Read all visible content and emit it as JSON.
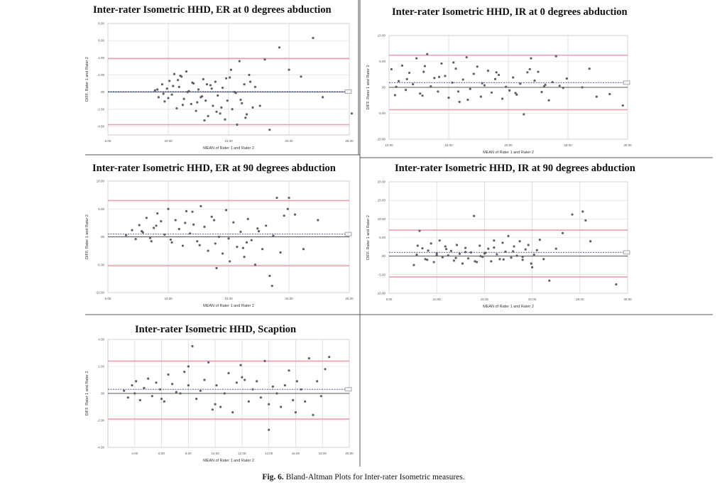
{
  "caption": {
    "label": "Fig. 6.",
    "text": "Bland-Altman Plots for Inter-rater Isometric measures."
  },
  "colors": {
    "limits": "#e8a0ae",
    "mean": "#4b5f95",
    "zero": "#555555",
    "points": "#606060",
    "grid": "#d9d9d9",
    "divider": "#555555"
  },
  "chart_data": [
    {
      "type": "scatter",
      "title": "Inter-rater Isometric HHD, ER at 0 degrees abduction",
      "xlabel": "MEAN of Rater 1 and Rater 2",
      "ylabel": "DIFF. Rater 1 and Rater 2",
      "xlim": [
        5,
        25
      ],
      "ylim": [
        -5,
        8
      ],
      "xticks": [
        5,
        10,
        15,
        20,
        25
      ],
      "xtick_labels": [
        "5.00",
        "10.00",
        "15.00",
        "20.00",
        "25.00"
      ],
      "yticks": [
        -4,
        -2,
        0,
        2,
        4,
        6,
        8
      ],
      "ytick_labels": [
        "-4.00",
        "-2.00",
        ".00",
        "2.00",
        "4.00",
        "6.00",
        "8.00"
      ],
      "grid": true,
      "lines": {
        "upper_limit": 3.9,
        "mean": 0.05,
        "zero": 0,
        "lower_limit": -3.8
      },
      "x": [
        8.9,
        9.2,
        9.5,
        9.7,
        9.9,
        10.1,
        10.3,
        10.5,
        10.7,
        10.9,
        11.1,
        11.3,
        11.5,
        11.7,
        11.9,
        12.1,
        12.3,
        12.5,
        12.7,
        12.9,
        13.1,
        13.3,
        13.5,
        13.7,
        13.9,
        14.1,
        14.3,
        14.5,
        14.7,
        14.9,
        15.1,
        15.3,
        15.5,
        15.7,
        15.9,
        16.1,
        16.3,
        16.5,
        16.7,
        9.6,
        10.4,
        11.2,
        12.0,
        12.8,
        13.6,
        14.4,
        15.2,
        16.0,
        9.1,
        10.0,
        10.8,
        11.6,
        12.4,
        13.2,
        14.0,
        14.8,
        15.6,
        16.4,
        17.2,
        18.0,
        17.6,
        18.4,
        19.2,
        20.0,
        21.0,
        22.0,
        22.8,
        25.2,
        17.0,
        16.8,
        13.0,
        11.0
      ],
      "y": [
        0.2,
        -0.6,
        0.9,
        -1.1,
        0.4,
        1.3,
        -0.3,
        2.1,
        -1.9,
        0.6,
        1.8,
        -0.8,
        2.4,
        0.1,
        -1.4,
        1.0,
        -2.2,
        0.3,
        -0.6,
        1.5,
        -1.0,
        -2.8,
        0.8,
        -1.6,
        1.2,
        -0.4,
        -2.5,
        0.5,
        -3.2,
        -1.0,
        1.7,
        -2.0,
        0.0,
        -3.8,
        3.6,
        -1.3,
        0.9,
        -2.6,
        2.0,
        -0.2,
        0.7,
        -1.5,
        1.1,
        -0.5,
        0.4,
        -1.8,
        2.6,
        -0.9,
        0.3,
        -0.7,
        1.4,
        0.0,
        -1.2,
        0.9,
        -2.3,
        1.6,
        -0.1,
        -3.0,
        0.6,
        3.8,
        -1.6,
        -4.4,
        5.2,
        2.6,
        1.8,
        6.3,
        -0.6,
        -2.5,
        -1.8,
        1.2,
        -3.3,
        1.9
      ]
    },
    {
      "type": "scatter",
      "title": "Inter-rater Isometric HHD, IR at 0 degrees abduction",
      "xlabel": "MEAN of Rater 1 and Rater 2",
      "ylabel": "DIFF. Rater 1 and Rater 2",
      "xlim": [
        10,
        30
      ],
      "ylim": [
        -10,
        10
      ],
      "xticks": [
        10,
        15,
        20,
        25,
        30
      ],
      "xtick_labels": [
        "10.00",
        "15.00",
        "20.00",
        "25.00",
        "30.00"
      ],
      "yticks": [
        -10,
        -5,
        0,
        5,
        10
      ],
      "ytick_labels": [
        "-10.00",
        "-5.00",
        ".00",
        "5.00",
        "10.00"
      ],
      "grid": true,
      "lines": {
        "upper_limit": 6.2,
        "mean": 0.9,
        "zero": 0,
        "lower_limit": -4.3
      },
      "x": [
        10.2,
        10.5,
        10.8,
        11.1,
        11.4,
        11.7,
        12.0,
        12.3,
        12.6,
        12.9,
        13.2,
        13.5,
        13.8,
        14.1,
        14.4,
        14.7,
        15.0,
        15.3,
        15.6,
        15.9,
        16.2,
        16.5,
        16.8,
        17.1,
        17.4,
        17.7,
        18.0,
        18.3,
        18.6,
        18.9,
        19.2,
        19.5,
        19.8,
        20.1,
        20.4,
        20.7,
        21.0,
        21.3,
        21.6,
        21.9,
        22.2,
        22.5,
        22.8,
        23.1,
        23.4,
        23.7,
        24.0,
        24.3,
        24.6,
        24.9,
        26.2,
        26.8,
        27.4,
        28.5,
        29.6,
        11.5,
        12.8,
        14.2,
        15.4,
        16.6,
        17.8,
        19.0,
        20.6,
        21.8,
        23.0,
        10.6,
        13.0,
        15.8
      ],
      "y": [
        3.5,
        -1.5,
        1.2,
        4.2,
        -0.5,
        2.8,
        0.6,
        5.6,
        -1.2,
        3.0,
        6.4,
        0.2,
        1.8,
        -0.8,
        4.6,
        2.2,
        -2.0,
        0.9,
        3.6,
        -2.8,
        1.5,
        5.8,
        -0.3,
        2.6,
        4.0,
        -1.8,
        0.4,
        3.2,
        -1.0,
        1.6,
        2.4,
        -2.2,
        0.1,
        -0.6,
        1.9,
        -1.4,
        0.7,
        -5.2,
        2.9,
        5.6,
        1.3,
        3.0,
        -0.9,
        0.5,
        -2.5,
        1.0,
        6.0,
        0.3,
        -0.1,
        1.7,
        0.0,
        3.6,
        -1.8,
        -1.3,
        -3.5,
        1.6,
        -1.6,
        2.0,
        4.8,
        -2.4,
        0.8,
        2.9,
        -1.1,
        3.5,
        0.2,
        0.1,
        4.1,
        -0.8
      ]
    },
    {
      "type": "scatter",
      "title": "Inter-rater Isometric HHD, ER at 90 degrees abduction",
      "xlabel": "MEAN of Rater 1 and Rater 2",
      "ylabel": "DIFF. Rater 1 and Rater 2",
      "xlim": [
        5,
        25
      ],
      "ylim": [
        -10,
        10
      ],
      "xticks": [
        5,
        10,
        15,
        20,
        25
      ],
      "xtick_labels": [
        "5.00",
        "10.00",
        "15.00",
        "20.00",
        "25.00"
      ],
      "yticks": [
        -10,
        -5,
        0,
        5,
        10
      ],
      "ytick_labels": [
        "-10.00",
        "-5.00",
        ".00",
        "5.00",
        "10.00"
      ],
      "grid": true,
      "lines": {
        "upper_limit": 6.5,
        "mean": 0.5,
        "zero": 0,
        "lower_limit": -5.2
      },
      "x": [
        6.5,
        7.0,
        7.3,
        7.6,
        7.9,
        8.2,
        8.5,
        8.8,
        9.1,
        9.4,
        9.7,
        10.0,
        10.3,
        10.6,
        10.9,
        11.2,
        11.5,
        11.8,
        12.1,
        12.4,
        12.7,
        13.0,
        13.3,
        13.6,
        13.9,
        14.2,
        14.5,
        14.8,
        15.1,
        15.4,
        15.7,
        16.0,
        16.3,
        16.6,
        16.9,
        17.2,
        17.5,
        17.8,
        18.1,
        18.4,
        18.7,
        19.0,
        19.3,
        19.6,
        20.0,
        20.5,
        21.2,
        22.4,
        7.8,
        9.0,
        10.2,
        11.4,
        12.6,
        13.8,
        15.0,
        16.2,
        17.4,
        18.6,
        14.0,
        19.9,
        8.6,
        12.0,
        16.5
      ],
      "y": [
        0.3,
        1.2,
        -0.4,
        2.1,
        0.8,
        3.4,
        -0.2,
        1.6,
        4.2,
        2.8,
        0.4,
        5.0,
        -1.0,
        3.0,
        1.4,
        -1.6,
        4.6,
        0.6,
        2.2,
        -0.8,
        5.5,
        1.8,
        -2.5,
        3.6,
        -1.2,
        0.0,
        -3.0,
        4.8,
        -4.4,
        2.6,
        -1.8,
        0.9,
        -3.6,
        3.2,
        -0.6,
        -5.0,
        1.0,
        -2.2,
        2.0,
        -7.0,
        0.2,
        7.0,
        -2.8,
        3.8,
        7.0,
        4.0,
        -2.2,
        3.0,
        1.0,
        2.0,
        -0.5,
        2.5,
        -1.5,
        3.0,
        -0.3,
        -2.0,
        1.5,
        -8.8,
        -5.6,
        5.0,
        -0.8,
        4.5,
        -1.0
      ]
    },
    {
      "type": "scatter",
      "title": "Inter-rater Isometric HHD, IR at 90 degrees abduction",
      "xlabel": "MEAN of Rater 1 and Rater 2",
      "ylabel": "DIFF. Rater 1 and Rater 2",
      "xlim": [
        5,
        30
      ],
      "ylim": [
        -10,
        20
      ],
      "xticks": [
        5,
        10,
        15,
        20,
        25,
        30
      ],
      "xtick_labels": [
        "5.00",
        "10.00",
        "15.00",
        "20.00",
        "25.00",
        "30.00"
      ],
      "yticks": [
        -10,
        -5,
        0,
        5,
        10,
        15,
        20
      ],
      "ytick_labels": [
        "-10.00",
        "-5.00",
        ".00",
        "5.00",
        "10.00",
        "15.00",
        "20.00"
      ],
      "grid": true,
      "lines": {
        "upper_limit": 7.0,
        "mean": 1.0,
        "zero": 0,
        "lower_limit": -5.6
      },
      "x": [
        7.6,
        7.9,
        8.2,
        8.5,
        8.8,
        9.1,
        9.4,
        9.7,
        10.0,
        10.3,
        10.6,
        10.9,
        11.2,
        11.5,
        11.8,
        12.1,
        12.4,
        12.7,
        13.0,
        13.3,
        13.6,
        13.9,
        14.2,
        14.5,
        14.8,
        15.1,
        15.4,
        15.7,
        16.0,
        16.3,
        16.6,
        16.9,
        17.2,
        17.5,
        17.8,
        18.1,
        18.4,
        18.7,
        19.0,
        19.3,
        19.6,
        19.9,
        20.2,
        20.5,
        20.8,
        21.2,
        21.8,
        22.5,
        23.2,
        24.2,
        25.3,
        25.6,
        26.1,
        28.8,
        8.0,
        9.0,
        10.0,
        11.0,
        12.0,
        13.0,
        14.0,
        15.0,
        16.0,
        17.0,
        18.0,
        19.0,
        20.0,
        14.6
      ],
      "y": [
        -2.4,
        0.4,
        6.8,
        2.1,
        -0.8,
        1.5,
        3.4,
        -1.6,
        0.8,
        4.2,
        -0.3,
        2.6,
        0.2,
        1.4,
        -1.2,
        3.0,
        0.6,
        -2.0,
        2.2,
        -0.6,
        1.0,
        10.8,
        -1.6,
        2.8,
        -0.2,
        0.9,
        2.0,
        -1.4,
        4.2,
        0.5,
        -0.8,
        3.6,
        1.2,
        5.4,
        -0.4,
        2.6,
        0.1,
        4.0,
        -1.0,
        1.8,
        3.0,
        -2.0,
        0.4,
        1.6,
        4.4,
        -0.8,
        -6.6,
        2.0,
        6.2,
        11.2,
        12.0,
        9.6,
        4.0,
        -7.6,
        2.8,
        -1.0,
        0.3,
        1.9,
        -0.5,
        1.1,
        -1.4,
        0.7,
        2.3,
        -0.9,
        1.3,
        -0.2,
        -3.0,
        0.0
      ]
    },
    {
      "type": "scatter",
      "title": "Inter-rater Isometric HHD, Scaption",
      "xlabel": "MEAN of Rater 1 and Rater 2",
      "ylabel": "DIFF. Rater 1 and Rater 2",
      "xlim": [
        2,
        20
      ],
      "ylim": [
        -4,
        4
      ],
      "xticks": [
        4,
        6,
        8,
        10,
        12,
        14,
        16,
        18,
        20
      ],
      "xtick_labels": [
        "4.00",
        "6.00",
        "8.00",
        "10.00",
        "12.00",
        "14.00",
        "16.00",
        "18.00",
        "20.00"
      ],
      "yticks": [
        -4,
        -2,
        0,
        2,
        4
      ],
      "ytick_labels": [
        "-4.00",
        "-2.00",
        ".00",
        "2.00",
        "4.00"
      ],
      "grid": true,
      "lines": {
        "upper_limit": 2.4,
        "mean": 0.3,
        "zero": 0,
        "lower_limit": -1.9
      },
      "x": [
        3.2,
        3.5,
        3.8,
        4.1,
        4.4,
        4.7,
        5.0,
        5.3,
        5.6,
        5.9,
        6.2,
        6.5,
        6.8,
        7.1,
        7.4,
        7.7,
        8.0,
        8.3,
        8.6,
        8.9,
        9.2,
        9.5,
        9.8,
        10.1,
        10.4,
        10.7,
        11.0,
        11.3,
        11.6,
        11.9,
        12.2,
        12.5,
        12.8,
        13.1,
        13.4,
        13.7,
        14.0,
        14.3,
        14.6,
        14.9,
        15.2,
        15.5,
        15.8,
        16.1,
        16.4,
        16.7,
        17.0,
        17.3,
        17.6,
        17.9,
        18.2,
        18.5,
        4.0,
        6.0,
        8.0,
        10.0,
        12.0,
        14.0,
        16.0
      ],
      "y": [
        0.2,
        -0.3,
        0.6,
        0.9,
        -0.5,
        0.4,
        1.1,
        -0.2,
        0.8,
        0.3,
        -0.6,
        1.4,
        0.7,
        0.1,
        0.0,
        1.6,
        2.0,
        3.5,
        -0.4,
        0.2,
        1.0,
        2.3,
        -1.2,
        0.6,
        -1.0,
        0.0,
        1.5,
        -1.4,
        0.8,
        2.1,
        1.0,
        -0.6,
        0.3,
        0.9,
        -0.3,
        2.4,
        -0.8,
        0.5,
        0.0,
        -1.0,
        0.6,
        1.7,
        -0.5,
        0.9,
        0.3,
        -0.6,
        2.6,
        -1.6,
        0.9,
        -0.2,
        1.8,
        2.7,
        0.0,
        -0.4,
        0.6,
        -0.8,
        1.2,
        -2.7,
        -1.4
      ]
    }
  ]
}
